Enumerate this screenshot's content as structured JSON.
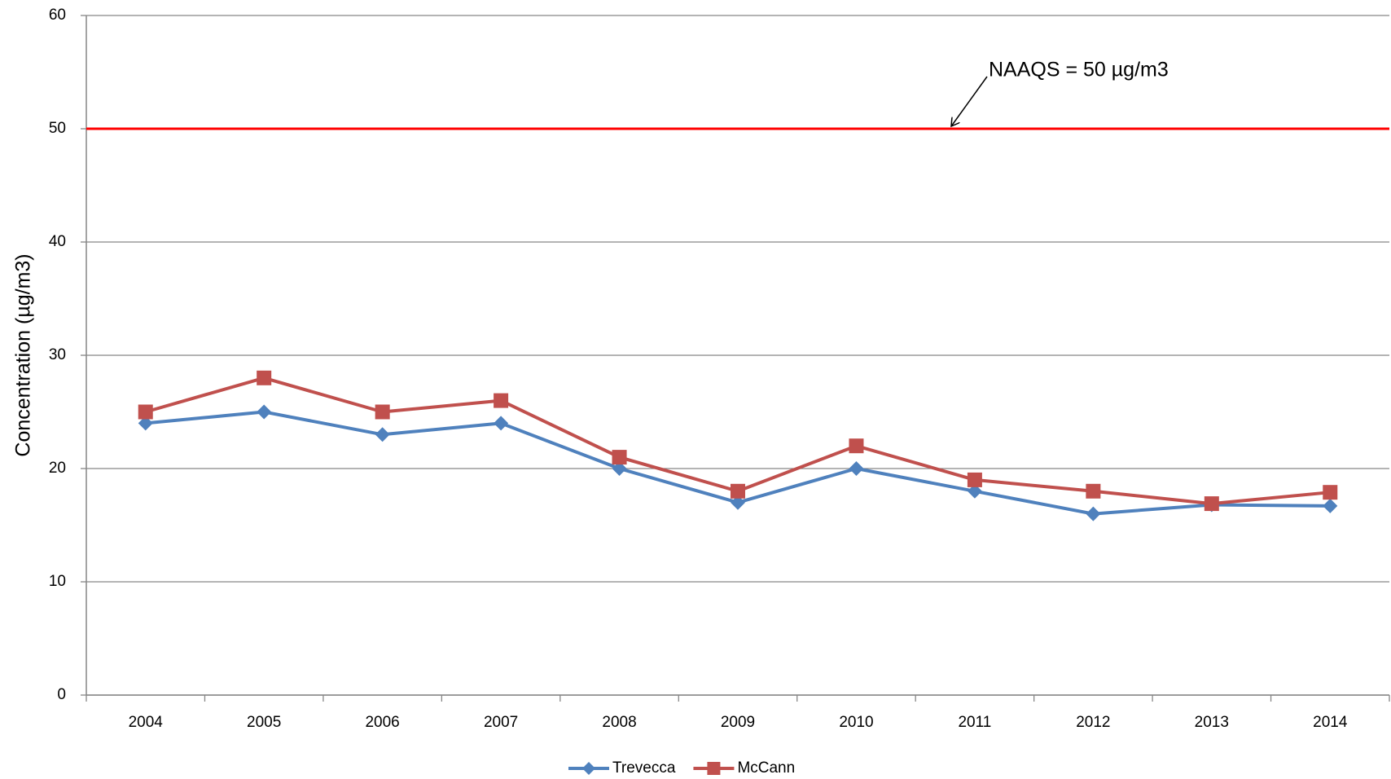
{
  "chart_data": {
    "type": "line",
    "y_label": "Concentration (µg/m3)",
    "categories": [
      "2004",
      "2005",
      "2006",
      "2007",
      "2008",
      "2009",
      "2010",
      "2011",
      "2012",
      "2013",
      "2014"
    ],
    "series": [
      {
        "name": "Trevecca",
        "color": "#4f81bd",
        "marker": "diamond",
        "values": [
          24,
          25,
          23,
          24,
          20,
          17,
          20,
          18,
          16,
          16.8,
          16.7
        ]
      },
      {
        "name": "McCann",
        "color": "#c0504d",
        "marker": "square",
        "values": [
          25,
          28,
          25,
          26,
          21,
          18,
          22,
          19,
          18,
          16.9,
          17.9
        ]
      }
    ],
    "reference_line": {
      "value": 50,
      "color": "#ff0000",
      "label": "NAAQS = 50 µg/m3"
    },
    "ylim": [
      0,
      60
    ],
    "yticks": [
      0,
      10,
      20,
      30,
      40,
      50,
      60
    ],
    "grid": true,
    "legend": "bottom"
  }
}
